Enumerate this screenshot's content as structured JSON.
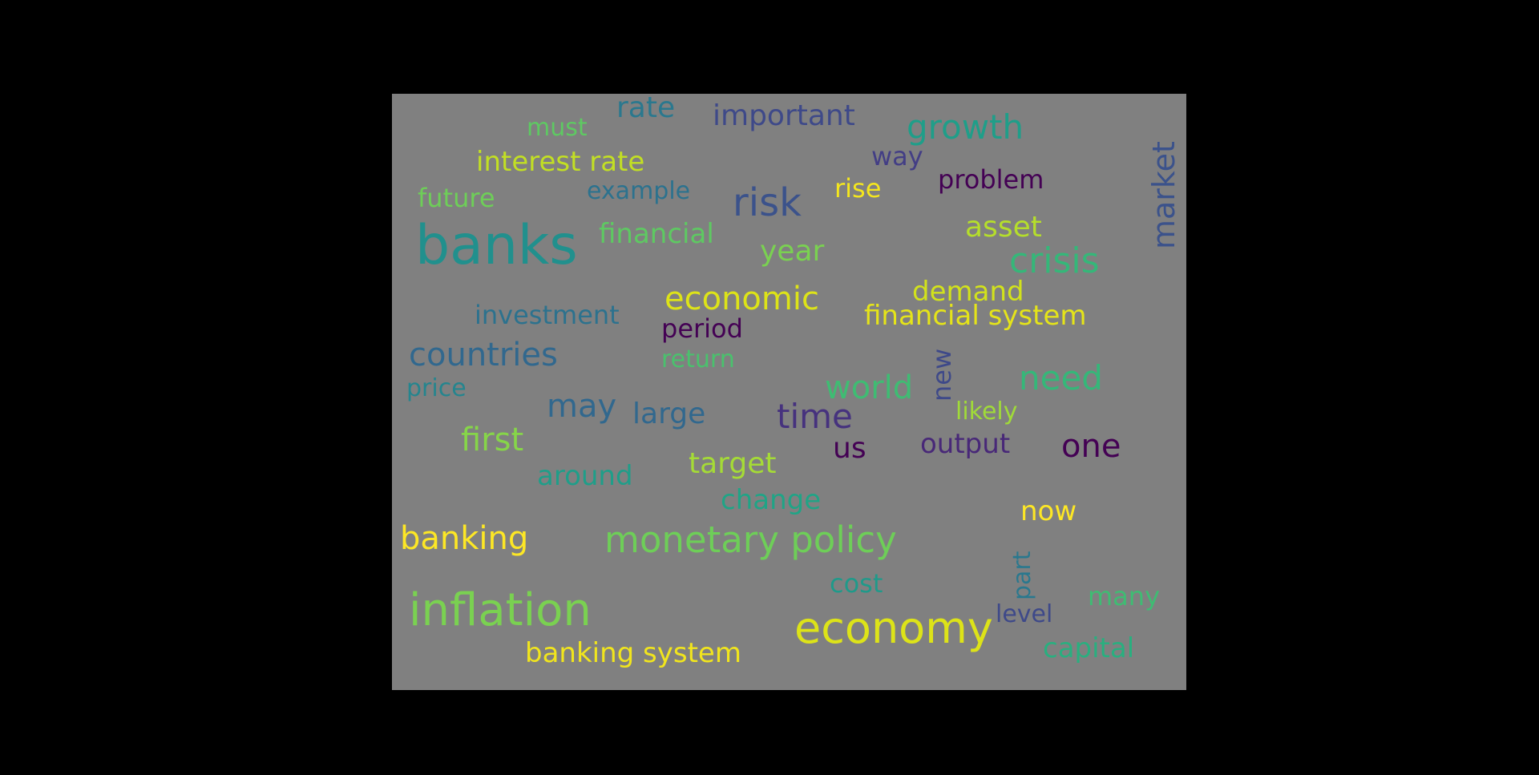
{
  "background_color": "#000000",
  "cloud_background": "#808080",
  "words": {
    "banks": {
      "text": "banks",
      "color": "#21908d"
    },
    "inflation": {
      "text": "inflation",
      "color": "#7ad151"
    },
    "economy": {
      "text": "economy",
      "color": "#dde318"
    },
    "monetary_policy": {
      "text": "monetary policy",
      "color": "#6ece58"
    },
    "risk": {
      "text": "risk",
      "color": "#3b528b"
    },
    "crisis": {
      "text": "crisis",
      "color": "#35b779"
    },
    "growth": {
      "text": "growth",
      "color": "#1f9e89"
    },
    "countries": {
      "text": "countries",
      "color": "#31688e"
    },
    "time": {
      "text": "time",
      "color": "#46327e"
    },
    "need": {
      "text": "need",
      "color": "#35b779"
    },
    "economic": {
      "text": "economic",
      "color": "#dde318"
    },
    "banking": {
      "text": "banking",
      "color": "#fde725"
    },
    "first": {
      "text": "first",
      "color": "#86d549"
    },
    "may": {
      "text": "may",
      "color": "#31688e"
    },
    "one": {
      "text": "one",
      "color": "#440154"
    },
    "world": {
      "text": "world",
      "color": "#3fbc73"
    },
    "target": {
      "text": "target",
      "color": "#a5db36"
    },
    "important": {
      "text": "important",
      "color": "#3e4989"
    },
    "interest_rate": {
      "text": "interest rate",
      "color": "#c2df23"
    },
    "rate": {
      "text": "rate",
      "color": "#2a788e"
    },
    "financial": {
      "text": "financial",
      "color": "#5ec962"
    },
    "year": {
      "text": "year",
      "color": "#7ad151"
    },
    "asset": {
      "text": "asset",
      "color": "#b5de2b"
    },
    "demand": {
      "text": "demand",
      "color": "#d2e21b"
    },
    "financial_system": {
      "text": "financial system",
      "color": "#e5e419"
    },
    "banking_system": {
      "text": "banking system",
      "color": "#f1e51d"
    },
    "large": {
      "text": "large",
      "color": "#31688e"
    },
    "around": {
      "text": "around",
      "color": "#1f9e89"
    },
    "output": {
      "text": "output",
      "color": "#482878"
    },
    "us": {
      "text": "us",
      "color": "#440154"
    },
    "change": {
      "text": "change",
      "color": "#20a486"
    },
    "now": {
      "text": "now",
      "color": "#fde725"
    },
    "investment": {
      "text": "investment",
      "color": "#2c728e"
    },
    "period": {
      "text": "period",
      "color": "#440154"
    },
    "return": {
      "text": "return",
      "color": "#4ac16d"
    },
    "price": {
      "text": "price",
      "color": "#25858e"
    },
    "likely": {
      "text": "likely",
      "color": "#a0da39"
    },
    "problem": {
      "text": "problem",
      "color": "#440154"
    },
    "way": {
      "text": "way",
      "color": "#433e85"
    },
    "rise": {
      "text": "rise",
      "color": "#f4e61e"
    },
    "future": {
      "text": "future",
      "color": "#6ece58"
    },
    "example": {
      "text": "example",
      "color": "#2c728e"
    },
    "must": {
      "text": "must",
      "color": "#5ec962"
    },
    "cost": {
      "text": "cost",
      "color": "#1f9a8a"
    },
    "many": {
      "text": "many",
      "color": "#3fbc73"
    },
    "level": {
      "text": "level",
      "color": "#3e4989"
    },
    "capital": {
      "text": "capital",
      "color": "#29af7f"
    },
    "market": {
      "text": "market",
      "color": "#3b528b"
    },
    "new": {
      "text": "new",
      "color": "#3e4989"
    },
    "part": {
      "text": "part",
      "color": "#2a788e"
    }
  }
}
